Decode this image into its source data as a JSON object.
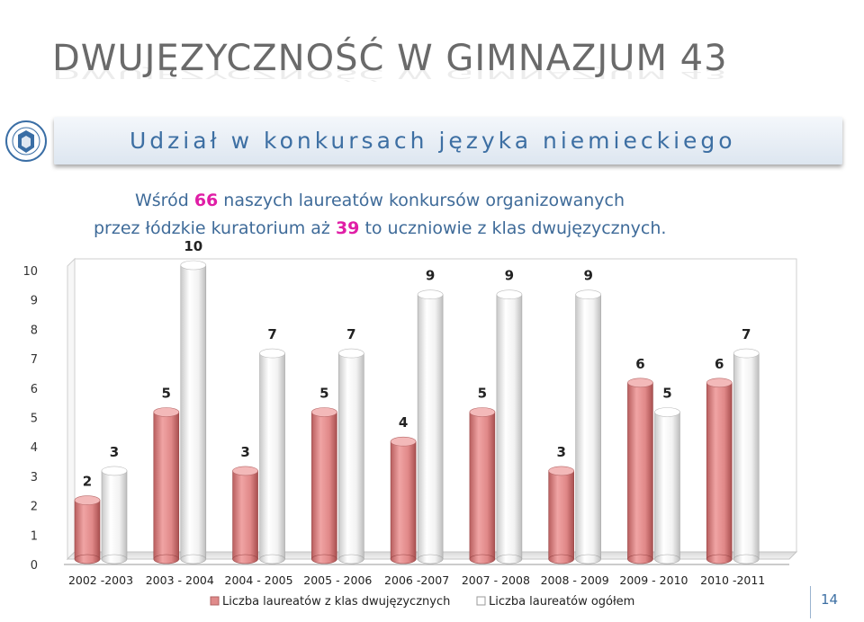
{
  "title": "DWUJĘZYCZNOŚĆ W GIMNAZJUM 43",
  "subtitle": "Udział w konkursach języka niemieckiego",
  "intro": {
    "l1_before": "Wśród ",
    "l1_num": "66",
    "l1_after": " naszych laureatów konkursów organizowanych",
    "l2_before": "przez łódzkie kuratorium  aż ",
    "l2_num": "39",
    "l2_after": " to uczniowie z klas dwujęzycznych."
  },
  "page_number": "14",
  "chart_data": {
    "type": "bar",
    "categories": [
      "2002 -2003",
      "2003 - 2004",
      "2004 - 2005",
      "2005 - 2006",
      "2006 -2007",
      "2007 - 2008",
      "2008 - 2009",
      "2009 - 2010",
      "2010 -2011"
    ],
    "series": [
      {
        "name": "Liczba laureatów z klas dwujęzycznych",
        "values": [
          2,
          5,
          3,
          5,
          4,
          5,
          3,
          6,
          6
        ],
        "color": "#e08b8b"
      },
      {
        "name": "Liczba laureatów ogółem",
        "values": [
          3,
          10,
          7,
          7,
          9,
          9,
          9,
          5,
          7
        ],
        "color": "#f2f2f2"
      }
    ],
    "data_labels": [
      [
        "2",
        "5",
        "3",
        "5",
        "4",
        "5",
        "3",
        "6",
        "6"
      ],
      [
        "3",
        "10",
        "7",
        "7",
        "9",
        "9",
        "9",
        "5",
        "7"
      ]
    ],
    "yticks": [
      "0",
      "1",
      "2",
      "3",
      "4",
      "5",
      "6",
      "7",
      "8",
      "9",
      "10"
    ],
    "ylim": [
      0,
      10
    ],
    "legend_position": "bottom",
    "grid": false
  }
}
